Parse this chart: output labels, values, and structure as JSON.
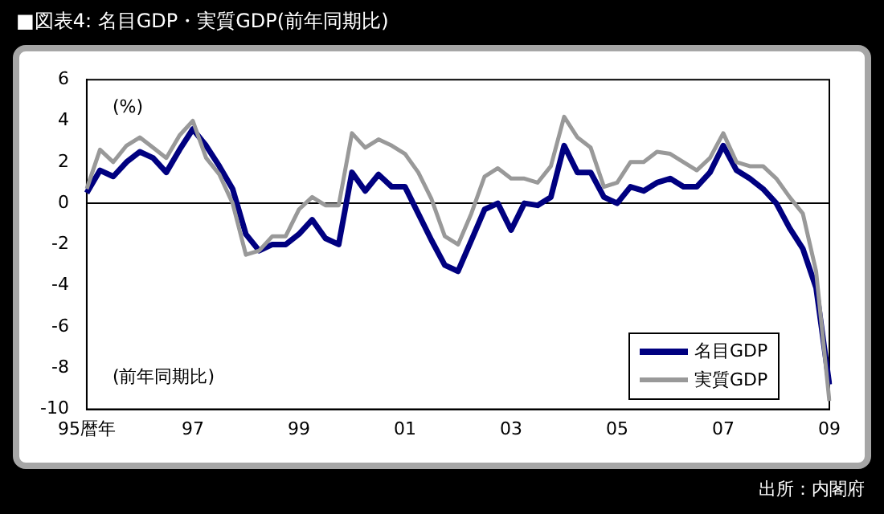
{
  "chart_data": {
    "type": "line",
    "title": "■図表4: 名目GDP・実質GDP(前年同期比)",
    "categories": [
      "95暦年",
      null,
      null,
      null,
      null,
      null,
      null,
      null,
      "97",
      null,
      null,
      null,
      null,
      null,
      null,
      null,
      "99",
      null,
      null,
      null,
      null,
      null,
      null,
      null,
      "01",
      null,
      null,
      null,
      null,
      null,
      null,
      null,
      "03",
      null,
      null,
      null,
      null,
      null,
      null,
      null,
      "05",
      null,
      null,
      null,
      null,
      null,
      null,
      null,
      "07",
      null,
      null,
      null,
      null,
      null,
      null,
      null,
      "09"
    ],
    "series": [
      {
        "name": "名目GDP",
        "color": "#000080",
        "values": [
          0.5,
          1.6,
          1.3,
          2.0,
          2.5,
          2.2,
          1.5,
          2.6,
          3.6,
          2.8,
          1.8,
          0.7,
          -1.5,
          -2.3,
          -2.0,
          -2.0,
          -1.5,
          -0.8,
          -1.7,
          -2.0,
          1.5,
          0.6,
          1.4,
          0.8,
          0.8,
          -0.5,
          -1.8,
          -3.0,
          -3.3,
          -1.8,
          -0.3,
          0.0,
          -1.3,
          0.0,
          -0.1,
          0.3,
          2.8,
          1.5,
          1.5,
          0.3,
          0.0,
          0.8,
          0.6,
          1.0,
          1.2,
          0.8,
          0.8,
          1.5,
          2.8,
          1.6,
          1.2,
          0.7,
          0.0,
          -1.2,
          -2.2,
          -4.1,
          -8.8
        ]
      },
      {
        "name": "実質GDP",
        "color": "#999999",
        "values": [
          0.7,
          2.6,
          2.0,
          2.8,
          3.2,
          2.7,
          2.2,
          3.3,
          4.0,
          2.2,
          1.4,
          0.0,
          -2.5,
          -2.3,
          -1.6,
          -1.6,
          -0.3,
          0.3,
          -0.1,
          -0.1,
          3.4,
          2.7,
          3.1,
          2.8,
          2.4,
          1.5,
          0.2,
          -1.6,
          -2.0,
          -0.5,
          1.3,
          1.7,
          1.2,
          1.2,
          1.0,
          1.8,
          4.2,
          3.2,
          2.7,
          0.8,
          1.0,
          2.0,
          2.0,
          2.5,
          2.4,
          2.0,
          1.6,
          2.2,
          3.4,
          2.0,
          1.8,
          1.8,
          1.2,
          0.3,
          -0.5,
          -3.3,
          -9.6
        ]
      }
    ],
    "ylim": [
      -10,
      6
    ],
    "yticks": [
      -10,
      -8,
      -6,
      -4,
      -2,
      0,
      2,
      4,
      6
    ],
    "ref_lines": [
      {
        "axis": "y",
        "value": 0,
        "color": "#000000"
      }
    ],
    "legend": "bottom right",
    "annotations": [
      "(%)",
      "(前年同期比)",
      "出所：内閣府"
    ]
  }
}
